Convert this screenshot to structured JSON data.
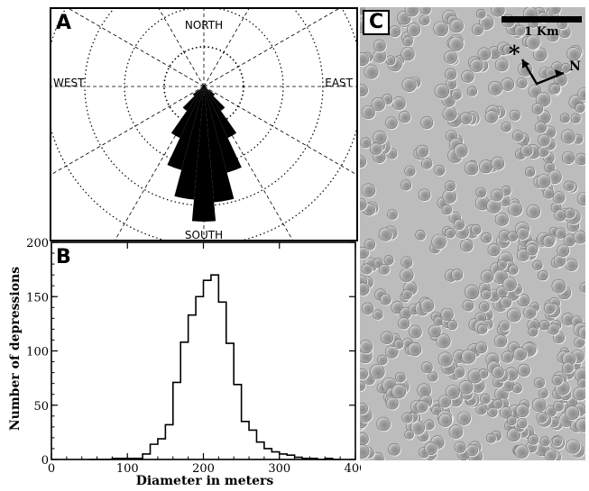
{
  "figure": {
    "panel_a_label": "A",
    "panel_b_label": "B",
    "panel_c_label": "C"
  },
  "rose": {
    "north_label": "NORTH",
    "south_label": "SOUTH",
    "east_label": "EAST",
    "west_label": "WEST"
  },
  "chart_data": [
    {
      "type": "rose",
      "title": "",
      "description_source": "panel A",
      "directions": [
        "NORTH",
        "EAST",
        "SOUTH",
        "WEST"
      ],
      "bins": [
        {
          "azimuth_deg": 180,
          "value": 1.0
        },
        {
          "azimuth_deg": 170,
          "value": 0.86
        },
        {
          "azimuth_deg": 190,
          "value": 0.84
        },
        {
          "azimuth_deg": 160,
          "value": 0.66
        },
        {
          "azimuth_deg": 200,
          "value": 0.64
        },
        {
          "azimuth_deg": 150,
          "value": 0.42
        },
        {
          "azimuth_deg": 210,
          "value": 0.42
        },
        {
          "azimuth_deg": 140,
          "value": 0.22
        },
        {
          "azimuth_deg": 220,
          "value": 0.22
        },
        {
          "azimuth_deg": 130,
          "value": 0.1
        },
        {
          "azimuth_deg": 230,
          "value": 0.1
        }
      ],
      "rings": 4,
      "grid": true
    },
    {
      "type": "histogram",
      "title": "",
      "xlabel": "Diameter in meters",
      "ylabel": "Number of depressions",
      "xlim": [
        0,
        400
      ],
      "ylim": [
        0,
        200
      ],
      "x_ticks": [
        0,
        100,
        200,
        300,
        400
      ],
      "y_ticks": [
        0,
        50,
        100,
        150,
        200
      ],
      "bin_width": 10,
      "bin_starts": [
        50,
        60,
        70,
        80,
        90,
        100,
        110,
        120,
        130,
        140,
        150,
        160,
        170,
        180,
        190,
        200,
        210,
        220,
        230,
        240,
        250,
        260,
        270,
        280,
        290,
        300,
        310,
        320,
        330,
        340,
        350,
        360,
        370
      ],
      "values": [
        0,
        0,
        0,
        1,
        1,
        1,
        1,
        5,
        14,
        19,
        32,
        71,
        108,
        133,
        150,
        165,
        170,
        145,
        107,
        69,
        35,
        27,
        16,
        10,
        7,
        5,
        4,
        2,
        1,
        1,
        0,
        1,
        0
      ],
      "grid": false
    }
  ],
  "map": {
    "scale_label": "1 Km",
    "north_label": "N",
    "marker_label": "*"
  }
}
